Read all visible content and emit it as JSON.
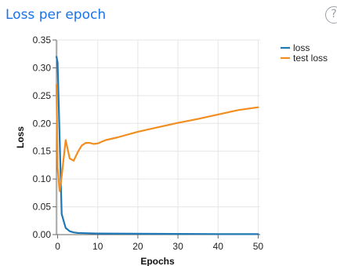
{
  "header": {
    "title": "Loss per epoch",
    "help_glyph": "?"
  },
  "chart_data": {
    "type": "line",
    "xlabel": "Epochs",
    "ylabel": "Loss",
    "xlim": [
      -0.3,
      50.5
    ],
    "ylim": [
      0,
      0.35
    ],
    "x_ticks": [
      0,
      10,
      20,
      30,
      40,
      50
    ],
    "y_ticks": [
      0,
      0.05,
      0.1,
      0.15,
      0.2,
      0.25,
      0.3,
      0.35
    ],
    "y_tick_labels": [
      "0.00",
      "0.05",
      "0.10",
      "0.15",
      "0.20",
      "0.25",
      "0.30",
      "0.35"
    ],
    "grid": true,
    "legend_position": "top-right",
    "series": [
      {
        "name": "loss",
        "color": "#1f77b4",
        "points": [
          [
            -0.3,
            0.32
          ],
          [
            0,
            0.31
          ],
          [
            1,
            0.037
          ],
          [
            2,
            0.012
          ],
          [
            3,
            0.006
          ],
          [
            4,
            0.004
          ],
          [
            5,
            0.003
          ],
          [
            7,
            0.0025
          ],
          [
            10,
            0.002
          ],
          [
            20,
            0.0015
          ],
          [
            30,
            0.0012
          ],
          [
            40,
            0.001
          ],
          [
            50,
            0.0008
          ]
        ]
      },
      {
        "name": "test loss",
        "color": "#f28e1f",
        "points": [
          [
            -0.3,
            0.27
          ],
          [
            0,
            0.12
          ],
          [
            0.5,
            0.078
          ],
          [
            1,
            0.105
          ],
          [
            2,
            0.17
          ],
          [
            3,
            0.137
          ],
          [
            4,
            0.133
          ],
          [
            5,
            0.148
          ],
          [
            6,
            0.16
          ],
          [
            7,
            0.165
          ],
          [
            8,
            0.165
          ],
          [
            9,
            0.163
          ],
          [
            10,
            0.164
          ],
          [
            12,
            0.17
          ],
          [
            15,
            0.175
          ],
          [
            20,
            0.185
          ],
          [
            25,
            0.193
          ],
          [
            30,
            0.201
          ],
          [
            35,
            0.208
          ],
          [
            40,
            0.216
          ],
          [
            45,
            0.224
          ],
          [
            50,
            0.229
          ]
        ]
      }
    ]
  }
}
